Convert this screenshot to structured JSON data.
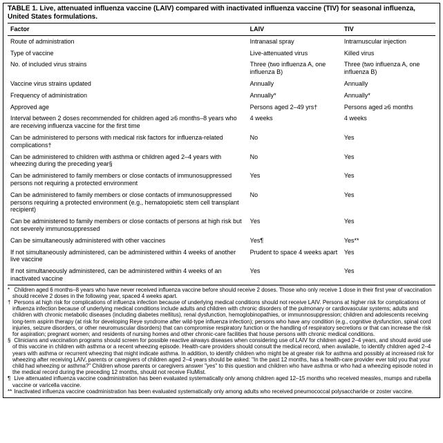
{
  "title": "TABLE 1. Live, attenuated influenza vaccine (LAIV) compared with inactivated influenza vaccine (TIV) for seasonal influenza, United States formulations.",
  "headers": {
    "factor": "Factor",
    "laiv": "LAIV",
    "tiv": "TIV"
  },
  "rows": [
    {
      "factor": "Route of administration",
      "laiv": "Intranasal spray",
      "tiv": "Intramuscular injection"
    },
    {
      "factor": "Type of vaccine",
      "laiv": "Live-attenuated virus",
      "tiv": "Killed virus"
    },
    {
      "factor": "No. of included virus strains",
      "laiv": "Three (two influenza A, one influenza B)",
      "tiv": "Three (two influenza A, one influenza B)"
    },
    {
      "factor": "Vaccine virus strains updated",
      "laiv": "Annually",
      "tiv": "Annually"
    },
    {
      "factor": "Frequency of administration",
      "laiv": "Annually*",
      "tiv": "Annually*"
    },
    {
      "factor": "Approved age",
      "laiv": "Persons aged 2–49 yrs†",
      "tiv": "Persons aged ≥6 months"
    },
    {
      "factor": "Interval between 2 doses recommended for children aged ≥6 months–8 years who are receiving influenza vaccine for the first time",
      "laiv": "4 weeks",
      "tiv": "4 weeks"
    },
    {
      "factor": "Can be administered to persons with medical risk factors for influenza-related complications†",
      "laiv": "No",
      "tiv": "Yes"
    },
    {
      "factor": "Can be administered to children with asthma or children aged 2–4 years with wheezing during the preceding year§",
      "laiv": "No",
      "tiv": "Yes"
    },
    {
      "factor": "Can be administered to family members or close contacts of immunosuppressed persons not requiring a protected environment",
      "laiv": "Yes",
      "tiv": "Yes"
    },
    {
      "factor": "Can be administered to family members or close contacts of immunosuppressed persons requiring a protected environment (e.g., hematopoietic stem cell transplant recipient)",
      "laiv": "No",
      "tiv": "Yes"
    },
    {
      "factor": "Can be administered to family members or close contacts of persons at high risk but not severely immunosuppressed",
      "laiv": "Yes",
      "tiv": "Yes"
    },
    {
      "factor": "Can be simultaneously administered with other vaccines",
      "laiv": "Yes¶",
      "tiv": "Yes**"
    },
    {
      "factor": "If not simultaneously administered, can be administered within 4 weeks of another live vaccine",
      "laiv": "Prudent to space 4 weeks apart",
      "tiv": "Yes"
    },
    {
      "factor": "If not simultaneously administered, can be administered within 4 weeks of an inactivated vaccine",
      "laiv": "Yes",
      "tiv": "Yes"
    }
  ],
  "footnotes": [
    {
      "sym": "*",
      "text": "Children aged 6 months–8 years who have never received influenza vaccine before should receive 2 doses. Those who only receive 1 dose in their first year of vaccination should receive 2 doses in the following year, spaced 4 weeks apart."
    },
    {
      "sym": "†",
      "text": "Persons at high risk for complications of influenza infection because of underlying medical conditions should not receive LAIV. Persons at higher risk for complications of influenza infection because of underlying medical conditions include adults and children with chronic disorders of the pulmonary or cardiovascular systems; adults and children with chronic metabolic diseases (including diabetes mellitus), renal dysfunction, hemoglobinopathies, or immunnosuppression; children and adolescents receiving long-term aspirin therapy (at risk for developing Reye syndrome after wild-type influenza infection); persons who have any condition (e.g., cognitive dysfunction, spinal cord injuries, seizure disorders, or other neuromuscular disorders) that can compromise respiratory function or the handling of respiratory secretions or that can increase the risk for aspiration; pregnant women; and residents of nursing homes and other chronic-care facilities that house persons with chronic medical conditions."
    },
    {
      "sym": "§",
      "text": "Clinicians and vaccination programs should screen for possible reactive airways diseases when considering use of LAIV for children aged 2–4 years, and should avoid use of this vaccine in children with asthma or a recent wheezing episode. Health-care providers should consult the medical record, when available, to identify children aged 2–4 years with asthma or recurrent wheezing that might indicate asthma. In addition, to identify children who might be at greater risk for asthma and possibly at increased risk for wheezing after receiving LAIV, parents or caregivers of children aged 2–4 years should be asked: \"In the past 12 months, has a health-care provider ever told you that your child had wheezing or asthma?\" Children whose parents or caregivers answer \"yes\" to this question and children who have asthma or who had a wheezing episode noted in the medical record during the preceding 12 months, should not receive FluMist."
    },
    {
      "sym": "¶",
      "text": "Live attenuated influenza vaccine coadministration has been evaluated systematically only among children aged 12–15 months who received measles, mumps and rubella vaccine or varicella vaccine."
    },
    {
      "sym": "**",
      "text": "Inactivated influenza vaccine coadministration has been evaluated systematically only among adults who received pneumococcal polysaccharide or zoster vaccine."
    }
  ]
}
